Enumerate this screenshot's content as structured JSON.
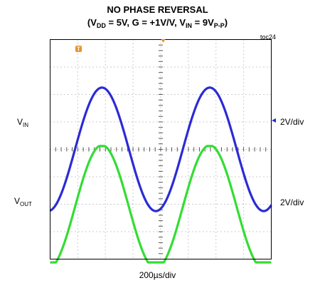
{
  "chart_data": {
    "type": "line",
    "title_line1": "NO PHASE REVERSAL",
    "title_line2": {
      "open": "(V",
      "sub_dd": "DD",
      "mid1": " = 5V, G = +1V/V, V",
      "sub_in": "IN",
      "mid2": " = 9V",
      "sub_pp": "P-P",
      "close": ")"
    },
    "doc_id": "toc24",
    "xlabel": "200µs/div",
    "x_divisions": 8,
    "y_divisions": 8,
    "grid": "dotted",
    "channels": [
      {
        "label_main": "V",
        "label_sub": "IN",
        "scale": "2V/div",
        "color": "#2b2bd6",
        "center_div": 0.0,
        "peak_div": 2.25,
        "period_div": 3.9,
        "phase_div": -3.1,
        "clip_low_div": null,
        "clip_high_div": null
      },
      {
        "label_main": "V",
        "label_sub": "OUT",
        "scale": "2V/div",
        "color": "#33dd33",
        "center_div": -2.1,
        "peak_div": 2.25,
        "period_div": 3.9,
        "phase_div": -3.1,
        "clip_low_div": -4.12,
        "clip_high_div": 0.12
      }
    ],
    "trigger_marker": "T",
    "trigger_color": "#e8922c"
  }
}
